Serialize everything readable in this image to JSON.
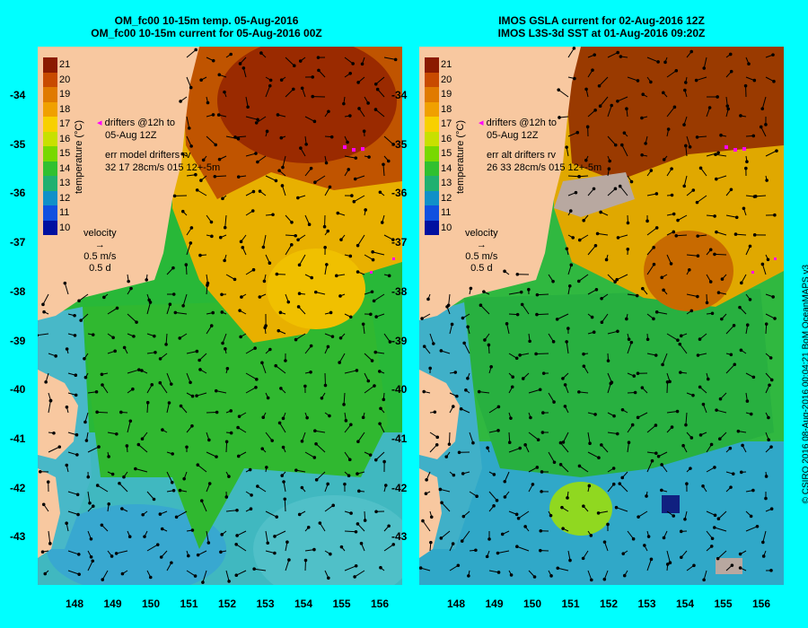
{
  "left_panel": {
    "title_line1": "OM_fc00 10-15m temp. 05-Aug-2016",
    "title_line2": "OM_fc00 10-15m current for 05-Aug-2016 00Z",
    "drifters_line1": "drifters @12h to",
    "drifters_line2": "05-Aug 12Z",
    "err_line1": "err model drifters rv",
    "err_line2": "32 17 28cm/s 015 12+-5m"
  },
  "right_panel": {
    "title_line1": "IMOS GSLA current for 02-Aug-2016 12Z",
    "title_line2": "IMOS L3S-3d SST at 01-Aug-2016 09:20Z",
    "drifters_line1": "drifters @12h to",
    "drifters_line2": "05-Aug 12Z",
    "err_line1": "err alt drifters rv",
    "err_line2": "26 33 28cm/s 015 12+-5m"
  },
  "colorbar": {
    "label": "temperature (°C)",
    "ticks": [
      "21",
      "20",
      "19",
      "18",
      "17",
      "16",
      "15",
      "14",
      "13",
      "12",
      "11",
      "10"
    ],
    "colors": [
      "#8b1a00",
      "#c84a00",
      "#e07a00",
      "#f0a000",
      "#f8d000",
      "#c8e000",
      "#78d800",
      "#30c030",
      "#20b070",
      "#1090c8",
      "#1050e0",
      "#0010a0"
    ]
  },
  "velocity": {
    "label": "velocity",
    "scale1": "0.5 m/s",
    "scale2": "0.5 d"
  },
  "lat_ticks": [
    "-34",
    "-35",
    "-36",
    "-37",
    "-38",
    "-39",
    "-40",
    "-41",
    "-42",
    "-43"
  ],
  "lon_ticks": [
    "148",
    "149",
    "150",
    "151",
    "152",
    "153",
    "154",
    "155",
    "156"
  ],
  "credit": "© CSIRO 2016   08-Aug-2016 00:04:21 BoM OceanMAPS v3",
  "colors": {
    "background": "#00ffff",
    "land": "#f8c8a0",
    "drifter": "#ff00ff",
    "missing": "#b8a8a0"
  }
}
